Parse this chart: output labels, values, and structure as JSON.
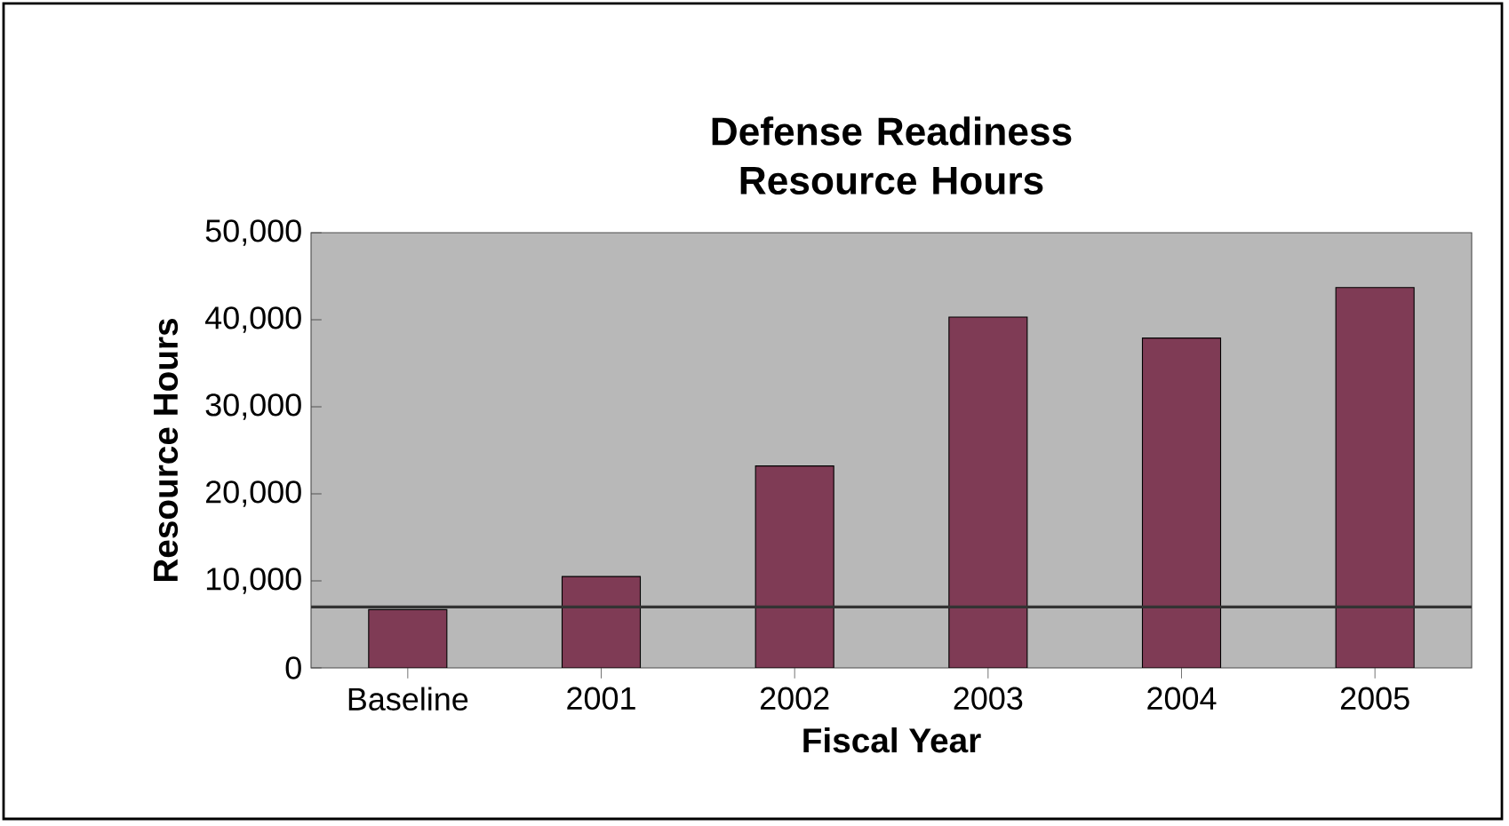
{
  "chart_data": {
    "type": "bar",
    "title": "Defense Readiness Resource Hours",
    "xlabel": "Fiscal Year",
    "ylabel": "Resource Hours",
    "categories": [
      "Baseline",
      "2001",
      "2002",
      "2003",
      "2004",
      "2005"
    ],
    "values": [
      6700,
      10500,
      23200,
      40300,
      37900,
      43700
    ],
    "color": "#7f3b55",
    "ylim": [
      0,
      50000
    ],
    "yticks": [
      {
        "value": 0,
        "label": "0"
      },
      {
        "value": 10000,
        "label": "10,000"
      },
      {
        "value": 20000,
        "label": "20,000"
      },
      {
        "value": 30000,
        "label": "30,000"
      },
      {
        "value": 40000,
        "label": "40,000"
      },
      {
        "value": 50000,
        "label": "50,000"
      }
    ],
    "ref_lines": [
      {
        "axis": "y",
        "value": 7000,
        "color": "#333333"
      }
    ],
    "grid": false
  }
}
